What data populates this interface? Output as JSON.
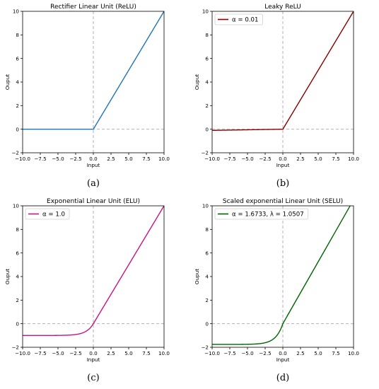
{
  "figure": {
    "colors": {
      "relu": "#1f77b4",
      "leaky": "#8b0000",
      "elu": "#c71585",
      "selu": "#006400",
      "refline": "#a8a8a8"
    }
  },
  "chart_data": [
    {
      "type": "line",
      "title": "Rectifier Linear Unit (ReLU)",
      "caption": "(a)",
      "xlabel": "Input",
      "ylabel": "Ouput",
      "xlim": [
        -10,
        10
      ],
      "ylim": [
        -2,
        10
      ],
      "xticks": [
        "−10.0",
        "−7.5",
        "−5.0",
        "−2.5",
        "0.0",
        "2.5",
        "5.0",
        "7.5",
        "10.0"
      ],
      "yticks": [
        "−2",
        "0",
        "2",
        "4",
        "6",
        "8",
        "10"
      ],
      "function": "relu",
      "series": [
        {
          "name": "",
          "color": "#1f77b4",
          "x": [
            -10,
            0,
            10
          ],
          "y": [
            0,
            0,
            10
          ]
        }
      ],
      "legend": null,
      "reference_lines": {
        "x": 0,
        "y": 0,
        "style": "dashed"
      }
    },
    {
      "type": "line",
      "title": "Leaky ReLU",
      "caption": "(b)",
      "xlabel": "Input",
      "ylabel": "Ouput",
      "xlim": [
        -10,
        10
      ],
      "ylim": [
        -2,
        10
      ],
      "xticks": [
        "−10.0",
        "−7.5",
        "−5.0",
        "−2.5",
        "0.0",
        "2.5",
        "5.0",
        "7.5",
        "10.0"
      ],
      "yticks": [
        "−2",
        "0",
        "2",
        "4",
        "6",
        "8",
        "10"
      ],
      "function": "leaky_relu",
      "params": {
        "alpha": 0.01
      },
      "series": [
        {
          "name": "α = 0.01",
          "color": "#8b0000",
          "x": [
            -10,
            0,
            10
          ],
          "y": [
            -0.1,
            0,
            10
          ]
        }
      ],
      "legend": {
        "position": "top-left",
        "label": "α = 0.01"
      },
      "reference_lines": {
        "x": 0,
        "y": 0,
        "style": "dashed"
      }
    },
    {
      "type": "line",
      "title": "Exponential Linear Unit (ELU)",
      "caption": "(c)",
      "xlabel": "Input",
      "ylabel": "Ouput",
      "xlim": [
        -10,
        10
      ],
      "ylim": [
        -2,
        10
      ],
      "xticks": [
        "−10.0",
        "−7.5",
        "−5.0",
        "−2.5",
        "0.0",
        "2.5",
        "5.0",
        "7.5",
        "10.0"
      ],
      "yticks": [
        "−2",
        "0",
        "2",
        "4",
        "6",
        "8",
        "10"
      ],
      "function": "elu",
      "params": {
        "alpha": 1.0
      },
      "series": [
        {
          "name": "α = 1.0",
          "color": "#c71585",
          "x": [
            -10,
            -5,
            -2.5,
            -1,
            0,
            10
          ],
          "y": [
            -1.0,
            -0.99,
            -0.92,
            -0.63,
            0,
            10
          ]
        }
      ],
      "legend": {
        "position": "top-left",
        "label": "α = 1.0"
      },
      "reference_lines": {
        "x": 0,
        "y": 0,
        "style": "dashed"
      }
    },
    {
      "type": "line",
      "title": "Scaled exponential Linear Unit (SELU)",
      "caption": "(d)",
      "xlabel": "Input",
      "ylabel": "Ouput",
      "xlim": [
        -10,
        10
      ],
      "ylim": [
        -2,
        10
      ],
      "xticks": [
        "−10.0",
        "−7.5",
        "−5.0",
        "−2.5",
        "0.0",
        "2.5",
        "5.0",
        "7.5",
        "10.0"
      ],
      "yticks": [
        "−2",
        "0",
        "2",
        "4",
        "6",
        "8",
        "10"
      ],
      "function": "selu",
      "params": {
        "alpha": 1.6733,
        "lambda": 1.0507
      },
      "series": [
        {
          "name": "α = 1.6733, λ = 1.0507",
          "color": "#006400",
          "x": [
            -10,
            -5,
            -2.5,
            -1,
            0,
            9.5
          ],
          "y": [
            -1.76,
            -1.75,
            -1.61,
            -1.11,
            0,
            9.98
          ]
        }
      ],
      "legend": {
        "position": "top-left",
        "label": "α = 1.6733, λ = 1.0507"
      },
      "reference_lines": {
        "x": 0,
        "y": 0,
        "style": "dashed"
      }
    }
  ]
}
